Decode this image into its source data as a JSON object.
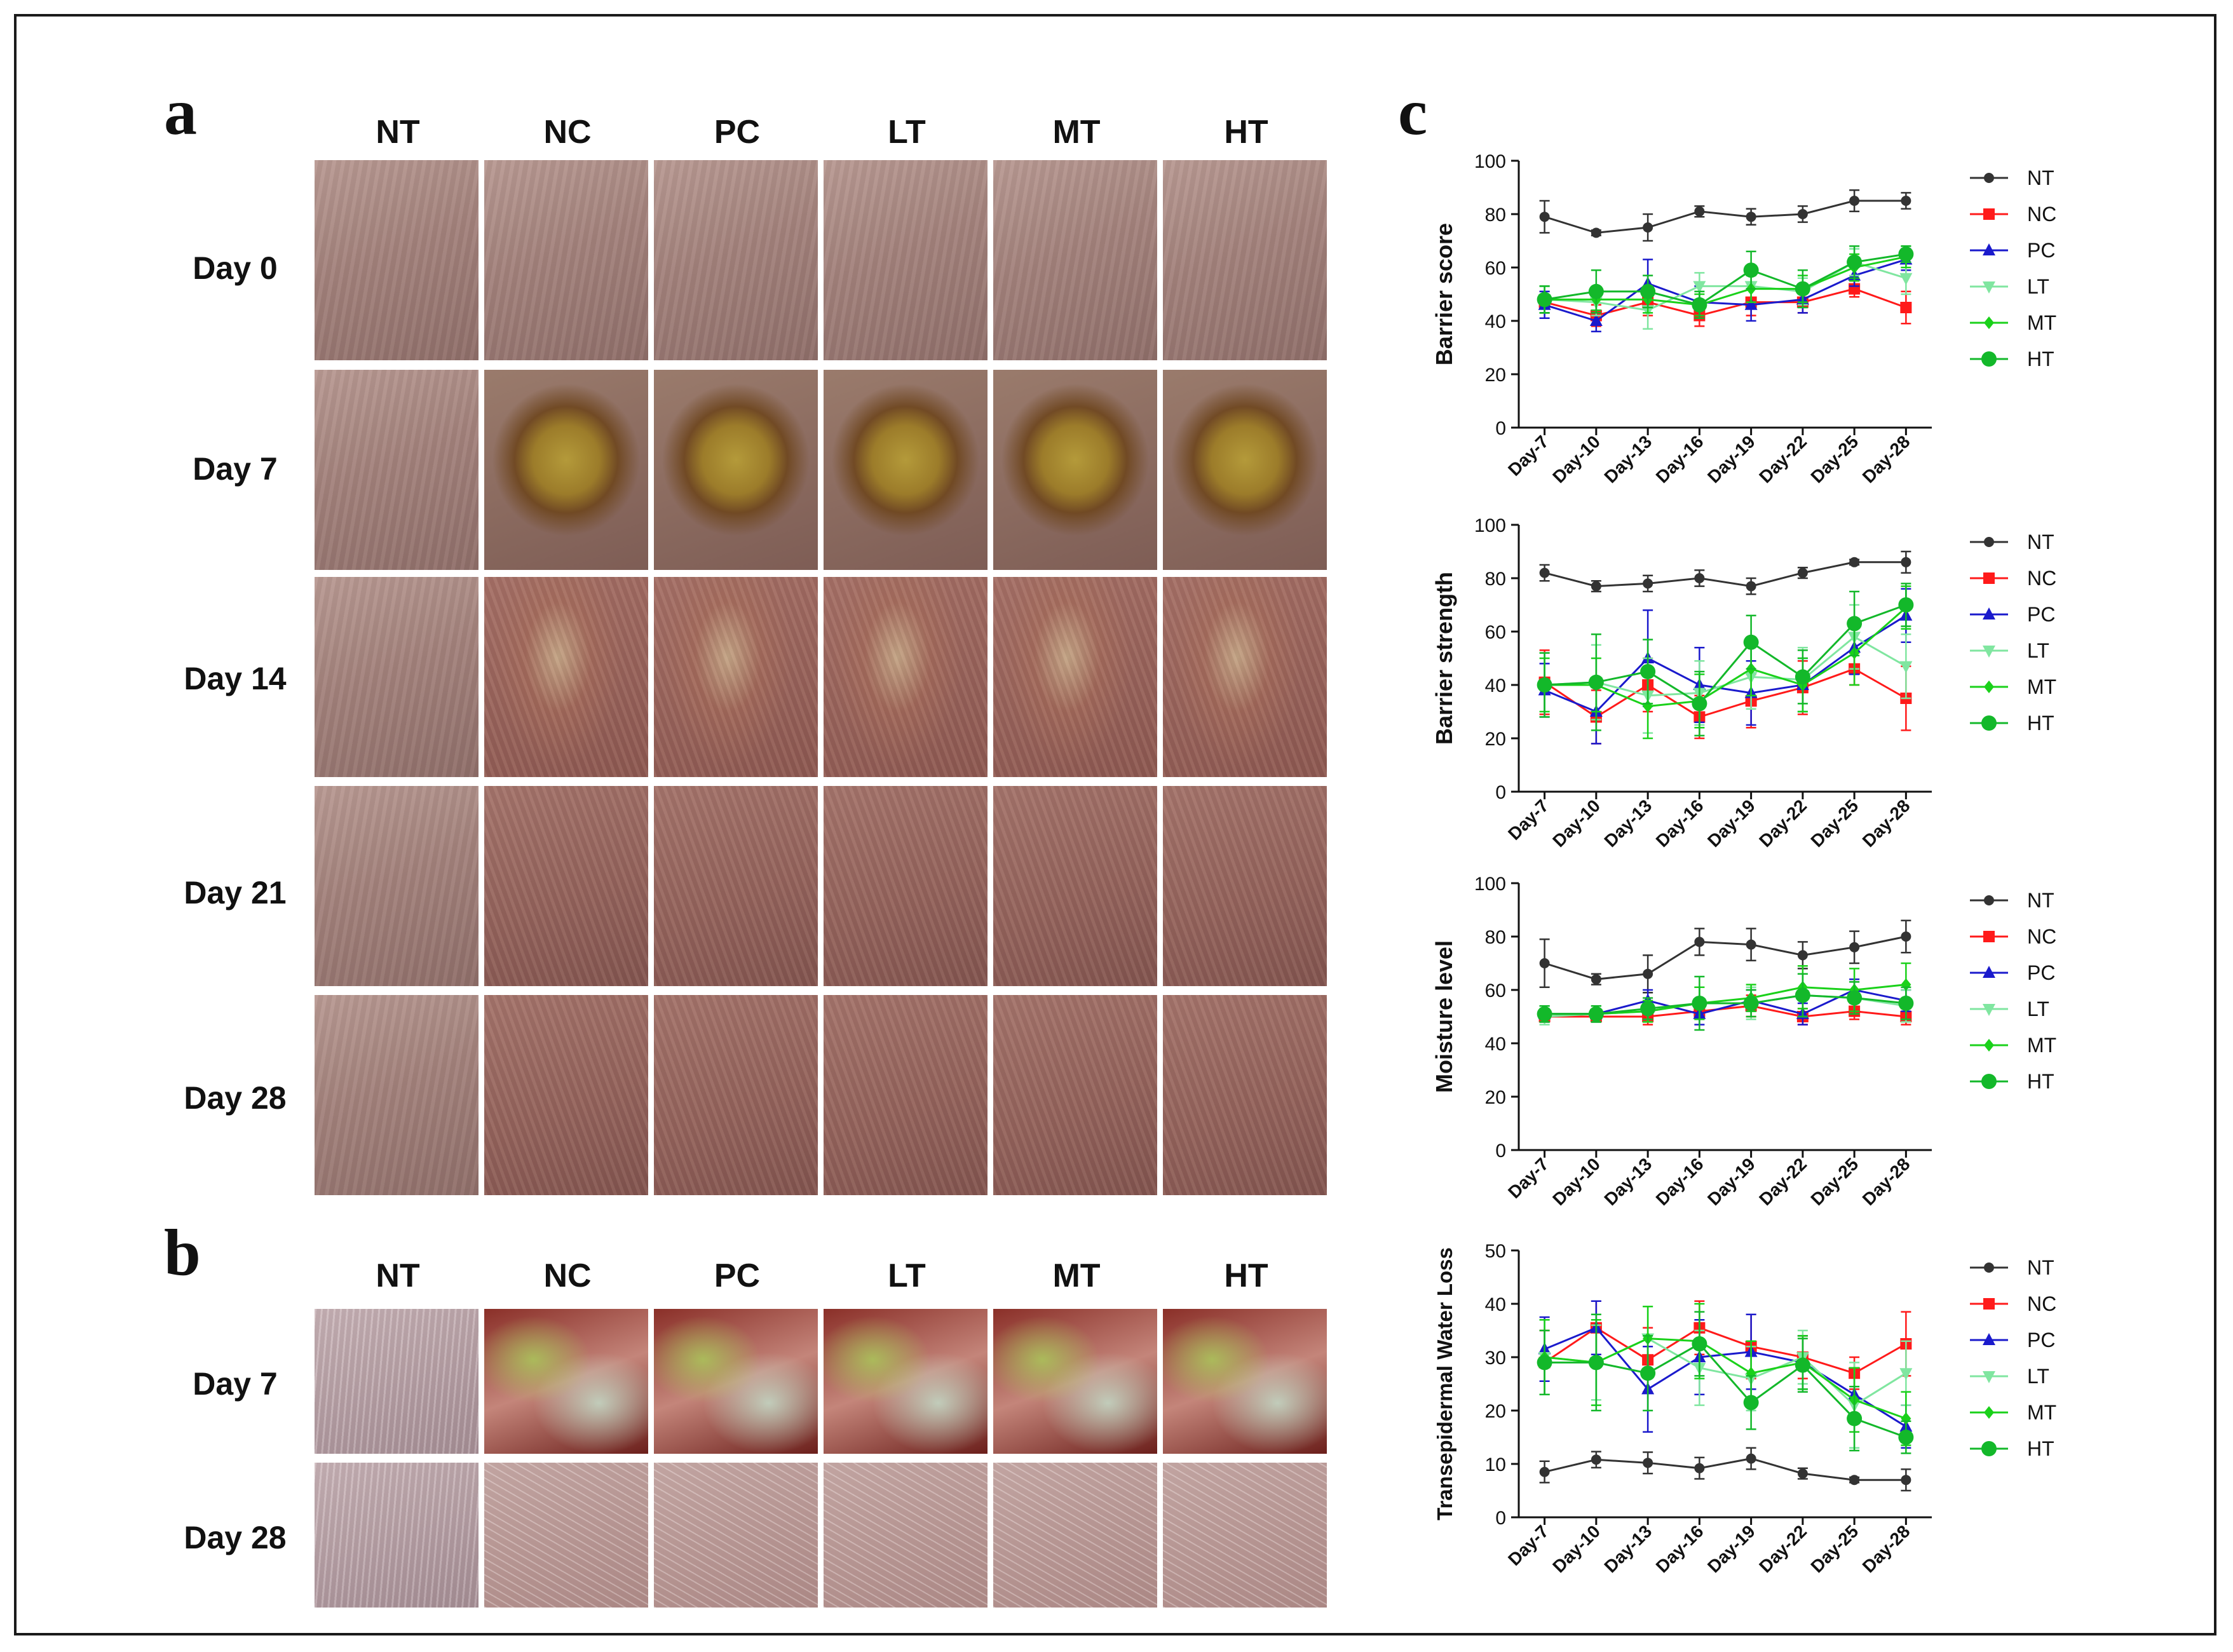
{
  "panels": {
    "a": {
      "letter": "a",
      "columns": [
        "NT",
        "NC",
        "PC",
        "LT",
        "MT",
        "HT"
      ],
      "rows": [
        "Day 0",
        "Day 7",
        "Day 14",
        "Day 21",
        "Day 28"
      ]
    },
    "b": {
      "letter": "b",
      "columns": [
        "NT",
        "NC",
        "PC",
        "LT",
        "MT",
        "HT"
      ],
      "rows": [
        "Day 7",
        "Day 28"
      ]
    },
    "c": {
      "letter": "c"
    }
  },
  "chart_data": [
    {
      "type": "line",
      "title": "",
      "xlabel": "",
      "ylabel": "Barrier score",
      "ylim": [
        0,
        100
      ],
      "yticks": [
        0,
        20,
        40,
        60,
        80,
        100
      ],
      "categories": [
        "Day-7",
        "Day-10",
        "Day-13",
        "Day-16",
        "Day-19",
        "Day-22",
        "Day-25",
        "Day-28"
      ],
      "legend_position": "right",
      "series": [
        {
          "name": "NT",
          "color": "#333333",
          "marker": "circle",
          "values": [
            79,
            73,
            75,
            81,
            79,
            80,
            85,
            85
          ],
          "errors": [
            6,
            1,
            5,
            2,
            3,
            3,
            4,
            3
          ]
        },
        {
          "name": "NC",
          "color": "#ff1a1a",
          "marker": "square",
          "values": [
            47,
            42,
            47,
            42,
            47,
            47,
            52,
            45
          ],
          "errors": [
            4,
            4,
            5,
            4,
            5,
            4,
            3,
            6
          ]
        },
        {
          "name": "PC",
          "color": "#1a1acc",
          "marker": "triangle",
          "values": [
            46,
            40,
            54,
            47,
            46,
            48,
            57,
            63
          ],
          "errors": [
            5,
            4,
            9,
            6,
            6,
            5,
            4,
            4
          ]
        },
        {
          "name": "LT",
          "color": "#80e6a0",
          "marker": "triangle-down",
          "values": [
            48,
            47,
            44,
            53,
            53,
            51,
            62,
            56
          ],
          "errors": [
            5,
            5,
            7,
            5,
            6,
            5,
            5,
            6
          ]
        },
        {
          "name": "MT",
          "color": "#1ad11a",
          "marker": "diamond",
          "values": [
            48,
            48,
            48,
            46,
            52,
            52,
            60,
            64
          ],
          "errors": [
            5,
            4,
            5,
            4,
            5,
            5,
            5,
            4
          ]
        },
        {
          "name": "HT",
          "color": "#13b82a",
          "marker": "circle-large",
          "values": [
            48,
            51,
            51,
            46,
            59,
            52,
            62,
            65
          ],
          "errors": [
            5,
            8,
            6,
            5,
            7,
            7,
            6,
            3
          ]
        }
      ]
    },
    {
      "type": "line",
      "title": "",
      "xlabel": "",
      "ylabel": "Barrier strength",
      "ylim": [
        0,
        100
      ],
      "yticks": [
        0,
        20,
        40,
        60,
        80,
        100
      ],
      "categories": [
        "Day-7",
        "Day-10",
        "Day-13",
        "Day-16",
        "Day-19",
        "Day-22",
        "Day-25",
        "Day-28"
      ],
      "legend_position": "right",
      "series": [
        {
          "name": "NT",
          "color": "#333333",
          "marker": "circle",
          "values": [
            82,
            77,
            78,
            80,
            77,
            82,
            86,
            86
          ],
          "errors": [
            3,
            2,
            3,
            3,
            3,
            2,
            1,
            4
          ]
        },
        {
          "name": "NC",
          "color": "#ff1a1a",
          "marker": "square",
          "values": [
            41,
            28,
            40,
            28,
            34,
            39,
            46,
            35
          ],
          "errors": [
            12,
            10,
            10,
            8,
            10,
            10,
            6,
            12
          ]
        },
        {
          "name": "PC",
          "color": "#1a1acc",
          "marker": "triangle",
          "values": [
            38,
            30,
            50,
            40,
            37,
            40,
            54,
            66
          ],
          "errors": [
            10,
            12,
            18,
            14,
            12,
            10,
            10,
            10
          ]
        },
        {
          "name": "LT",
          "color": "#80e6a0",
          "marker": "triangle-down",
          "values": [
            40,
            41,
            36,
            37,
            43,
            42,
            58,
            47
          ],
          "errors": [
            12,
            14,
            14,
            12,
            12,
            12,
            12,
            12
          ]
        },
        {
          "name": "MT",
          "color": "#1ad11a",
          "marker": "diamond",
          "values": [
            40,
            40,
            32,
            34,
            46,
            40,
            52,
            69
          ],
          "errors": [
            10,
            10,
            12,
            10,
            10,
            10,
            12,
            8
          ]
        },
        {
          "name": "HT",
          "color": "#13b82a",
          "marker": "circle-large",
          "values": [
            40,
            41,
            45,
            33,
            56,
            43,
            63,
            70
          ],
          "errors": [
            12,
            18,
            12,
            12,
            10,
            10,
            12,
            8
          ]
        }
      ]
    },
    {
      "type": "line",
      "title": "",
      "xlabel": "",
      "ylabel": "Moisture level",
      "ylim": [
        0,
        100
      ],
      "yticks": [
        0,
        20,
        40,
        60,
        80,
        100
      ],
      "categories": [
        "Day-7",
        "Day-10",
        "Day-13",
        "Day-16",
        "Day-19",
        "Day-22",
        "Day-25",
        "Day-28"
      ],
      "legend_position": "right",
      "series": [
        {
          "name": "NT",
          "color": "#333333",
          "marker": "circle",
          "values": [
            70,
            64,
            66,
            78,
            77,
            73,
            76,
            80
          ],
          "errors": [
            9,
            2,
            7,
            5,
            6,
            5,
            6,
            6
          ]
        },
        {
          "name": "NC",
          "color": "#ff1a1a",
          "marker": "square",
          "values": [
            50,
            50,
            50,
            52,
            54,
            50,
            52,
            50
          ],
          "errors": [
            2,
            2,
            3,
            3,
            4,
            3,
            3,
            3
          ]
        },
        {
          "name": "PC",
          "color": "#1a1acc",
          "marker": "triangle",
          "values": [
            51,
            51,
            56,
            51,
            56,
            51,
            60,
            56
          ],
          "errors": [
            3,
            3,
            4,
            4,
            4,
            4,
            4,
            4
          ]
        },
        {
          "name": "LT",
          "color": "#80e6a0",
          "marker": "triangle-down",
          "values": [
            50,
            51,
            52,
            55,
            55,
            58,
            57,
            54
          ],
          "errors": [
            3,
            3,
            4,
            6,
            6,
            8,
            6,
            6
          ]
        },
        {
          "name": "MT",
          "color": "#1ad11a",
          "marker": "diamond",
          "values": [
            51,
            51,
            52,
            55,
            57,
            61,
            60,
            62
          ],
          "errors": [
            3,
            3,
            4,
            6,
            5,
            8,
            8,
            8
          ]
        },
        {
          "name": "HT",
          "color": "#13b82a",
          "marker": "circle-large",
          "values": [
            51,
            51,
            53,
            55,
            55,
            58,
            57,
            55
          ],
          "errors": [
            3,
            3,
            4,
            10,
            5,
            8,
            6,
            6
          ]
        }
      ]
    },
    {
      "type": "line",
      "title": "",
      "xlabel": "",
      "ylabel": "Transepidermal Water Loss",
      "ylim": [
        0,
        50
      ],
      "yticks": [
        0,
        10,
        20,
        30,
        40,
        50
      ],
      "categories": [
        "Day-7",
        "Day-10",
        "Day-13",
        "Day-16",
        "Day-19",
        "Day-22",
        "Day-25",
        "Day-28"
      ],
      "legend_position": "right",
      "series": [
        {
          "name": "NT",
          "color": "#333333",
          "marker": "circle",
          "values": [
            8.5,
            10.8,
            10.2,
            9.2,
            11,
            8.2,
            7,
            7
          ],
          "errors": [
            2,
            1.5,
            2,
            2,
            2,
            1,
            0.5,
            2
          ]
        },
        {
          "name": "NC",
          "color": "#ff1a1a",
          "marker": "square",
          "values": [
            29,
            35.5,
            29.5,
            35.5,
            32,
            30,
            27,
            32.5
          ],
          "errors": [
            6,
            5,
            6,
            5,
            6,
            4,
            3,
            6
          ]
        },
        {
          "name": "PC",
          "color": "#1a1acc",
          "marker": "triangle",
          "values": [
            31.5,
            35.5,
            24,
            30,
            31,
            29,
            23,
            17
          ],
          "errors": [
            6,
            5,
            8,
            7,
            7,
            5,
            5,
            4
          ]
        },
        {
          "name": "LT",
          "color": "#80e6a0",
          "marker": "triangle-down",
          "values": [
            30,
            29,
            33.5,
            28,
            26,
            30,
            21,
            27
          ],
          "errors": [
            7,
            7,
            6,
            7,
            6,
            5,
            8,
            6
          ]
        },
        {
          "name": "MT",
          "color": "#1ad11a",
          "marker": "diamond",
          "values": [
            30,
            29,
            33.5,
            33,
            27,
            29,
            22,
            18.5
          ],
          "errors": [
            7,
            8,
            6,
            7,
            6,
            5,
            6,
            5
          ]
        },
        {
          "name": "HT",
          "color": "#13b82a",
          "marker": "circle-large",
          "values": [
            29,
            29,
            27,
            32.5,
            21.5,
            28.5,
            18.5,
            15
          ],
          "errors": [
            6,
            9,
            7,
            6,
            5,
            5,
            6,
            3
          ]
        }
      ]
    }
  ]
}
